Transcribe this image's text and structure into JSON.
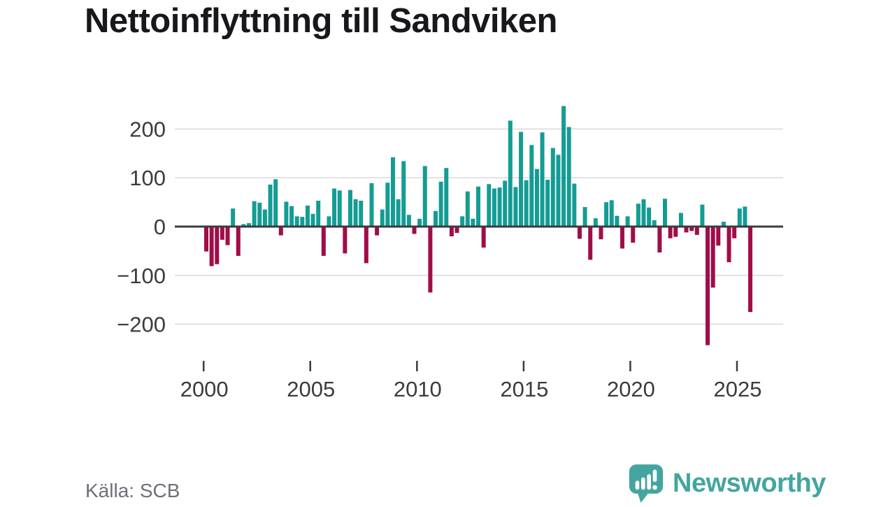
{
  "title": "Nettoinflyttning till Sandviken",
  "source": "Källa: SCB",
  "branding": {
    "logo_text": "Newsworthy",
    "logo_icon": "newsworthy-speech-bubble-bar-chart-icon",
    "brand_color": "#44a5a0"
  },
  "colors": {
    "positive_bar": "#149c94",
    "negative_bar": "#a00d48",
    "gridline": "#dcdcdc",
    "zero_axis": "#3b3b40",
    "axis_label": "#3b3b40",
    "title_text": "#17171c",
    "source_text": "#6f6f79"
  },
  "chart_data": {
    "type": "bar",
    "title": "Nettoinflyttning till Sandviken",
    "frequency": "quarterly",
    "grid": true,
    "ylim": [
      -260,
      265
    ],
    "yticks": [
      200,
      100,
      0,
      -100,
      -200
    ],
    "ytick_labels": [
      "200",
      "100",
      "0",
      "−100",
      "−200"
    ],
    "xtick_labels": [
      "2000",
      "2005",
      "2010",
      "2015",
      "2020",
      "2025"
    ],
    "series_by_year": [
      {
        "year": 2000,
        "quarters": [
          -51,
          -81,
          -77,
          -27
        ]
      },
      {
        "year": 2001,
        "quarters": [
          -38,
          37,
          -60,
          5
        ]
      },
      {
        "year": 2002,
        "quarters": [
          7,
          52,
          49,
          35
        ]
      },
      {
        "year": 2003,
        "quarters": [
          86,
          97,
          -18,
          51
        ]
      },
      {
        "year": 2004,
        "quarters": [
          42,
          21,
          20,
          43
        ]
      },
      {
        "year": 2005,
        "quarters": [
          26,
          53,
          -60,
          21
        ]
      },
      {
        "year": 2006,
        "quarters": [
          78,
          74,
          -55,
          75
        ]
      },
      {
        "year": 2007,
        "quarters": [
          56,
          53,
          -75,
          89
        ]
      },
      {
        "year": 2008,
        "quarters": [
          -18,
          35,
          90,
          142
        ]
      },
      {
        "year": 2009,
        "quarters": [
          56,
          134,
          24,
          -15
        ]
      },
      {
        "year": 2010,
        "quarters": [
          16,
          124,
          -135,
          32
        ]
      },
      {
        "year": 2011,
        "quarters": [
          92,
          120,
          -20,
          -13
        ]
      },
      {
        "year": 2012,
        "quarters": [
          21,
          72,
          16,
          82
        ]
      },
      {
        "year": 2013,
        "quarters": [
          -43,
          87,
          78,
          80
        ]
      },
      {
        "year": 2014,
        "quarters": [
          94,
          217,
          81,
          194
        ]
      },
      {
        "year": 2015,
        "quarters": [
          95,
          167,
          118,
          193
        ]
      },
      {
        "year": 2016,
        "quarters": [
          96,
          161,
          147,
          247
        ]
      },
      {
        "year": 2017,
        "quarters": [
          204,
          88,
          -25,
          40
        ]
      },
      {
        "year": 2018,
        "quarters": [
          -68,
          17,
          -26,
          50
        ]
      },
      {
        "year": 2019,
        "quarters": [
          54,
          22,
          -45,
          21
        ]
      },
      {
        "year": 2020,
        "quarters": [
          -33,
          47,
          56,
          39
        ]
      },
      {
        "year": 2021,
        "quarters": [
          13,
          -53,
          57,
          -24
        ]
      },
      {
        "year": 2022,
        "quarters": [
          -21,
          28,
          -12,
          -9
        ]
      },
      {
        "year": 2023,
        "quarters": [
          -17,
          45,
          -243,
          -125
        ]
      },
      {
        "year": 2024,
        "quarters": [
          -39,
          10,
          -73,
          -24
        ]
      },
      {
        "year": 2025,
        "quarters": [
          37,
          41,
          -175
        ]
      }
    ]
  }
}
